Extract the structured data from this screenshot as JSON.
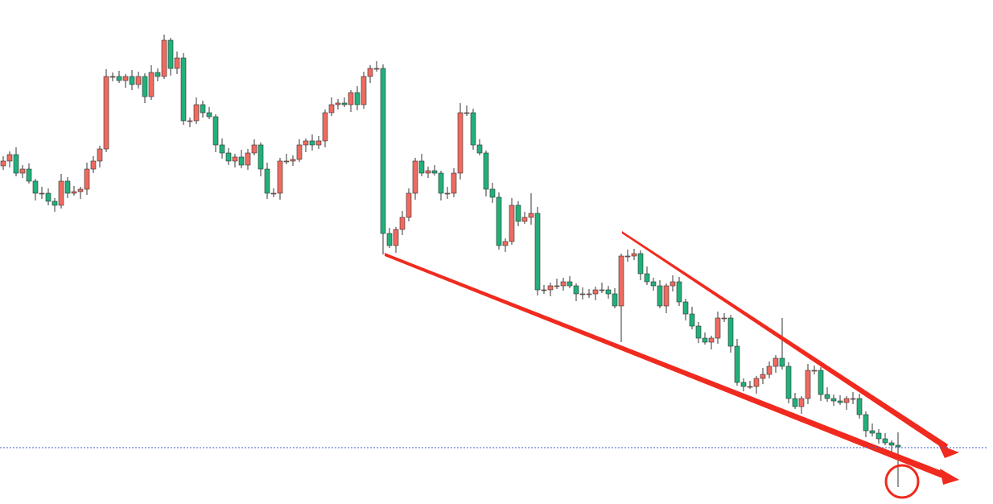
{
  "chart_data": {
    "type": "candlestick",
    "up_color": "#ef6a5f",
    "down_color": "#22b07a",
    "wick_color": "#333333",
    "ylim": [
      0,
      626
    ],
    "hline": {
      "value": 70,
      "color": "#3a5fcd"
    },
    "open": [
      420,
      426,
      434,
      411,
      416,
      401,
      386,
      386,
      376,
      371,
      401,
      386,
      388,
      391,
      416,
      426,
      441,
      531,
      531,
      526,
      531,
      521,
      531,
      506,
      536,
      531,
      576,
      541,
      554,
      476,
      476,
      496,
      486,
      481,
      446,
      436,
      426,
      431,
      421,
      436,
      446,
      416,
      386,
      386,
      426,
      426,
      428,
      446,
      451,
      446,
      451,
      486,
      496,
      498,
      496,
      511,
      496,
      531,
      541,
      541,
      336,
      321,
      341,
      356,
      386,
      426,
      411,
      414,
      411,
      386,
      386,
      411,
      486,
      486,
      446,
      436,
      391,
      381,
      321,
      326,
      371,
      351,
      356,
      361,
      266,
      266,
      271,
      271,
      276,
      271,
      261,
      261,
      261,
      266,
      266,
      261,
      246,
      308,
      308,
      311,
      286,
      276,
      271,
      246,
      271,
      276,
      251,
      236,
      221,
      206,
      201,
      206,
      231,
      231,
      196,
      151,
      146,
      146,
      156,
      161,
      171,
      181,
      171,
      131,
      121,
      131,
      166,
      166,
      136,
      131,
      128,
      126,
      131,
      131,
      111,
      91,
      88,
      81,
      76,
      73
    ],
    "high": [
      432,
      438,
      443,
      421,
      423,
      404,
      394,
      392,
      380,
      410,
      406,
      395,
      394,
      424,
      432,
      445,
      540,
      536,
      538,
      534,
      539,
      537,
      535,
      545,
      541,
      583,
      579,
      562,
      560,
      480,
      505,
      501,
      493,
      484,
      454,
      442,
      435,
      440,
      441,
      453,
      449,
      424,
      392,
      430,
      435,
      433,
      453,
      454,
      459,
      457,
      490,
      505,
      503,
      505,
      514,
      519,
      537,
      545,
      550,
      546,
      343,
      344,
      364,
      392,
      430,
      435,
      419,
      421,
      414,
      394,
      417,
      498,
      495,
      491,
      453,
      439,
      399,
      387,
      330,
      380,
      376,
      363,
      386,
      369,
      272,
      275,
      280,
      281,
      283,
      274,
      269,
      267,
      270,
      275,
      271,
      268,
      311,
      316,
      317,
      315,
      295,
      281,
      278,
      274,
      284,
      282,
      255,
      245,
      226,
      213,
      209,
      239,
      237,
      235,
      205,
      156,
      153,
      159,
      169,
      177,
      185,
      231,
      176,
      138,
      134,
      174,
      172,
      170,
      145,
      136,
      135,
      134,
      139,
      137,
      115,
      100,
      93,
      88,
      79,
      89
    ],
    "low": [
      415,
      418,
      407,
      405,
      398,
      377,
      379,
      371,
      363,
      367,
      380,
      383,
      379,
      384,
      411,
      418,
      437,
      525,
      523,
      517,
      514,
      516,
      498,
      502,
      525,
      528,
      532,
      534,
      471,
      468,
      472,
      480,
      478,
      437,
      429,
      421,
      418,
      417,
      415,
      433,
      407,
      379,
      381,
      378,
      422,
      420,
      425,
      437,
      439,
      441,
      443,
      482,
      490,
      493,
      487,
      489,
      491,
      523,
      537,
      310,
      318,
      312,
      334,
      351,
      378,
      407,
      405,
      408,
      377,
      379,
      381,
      403,
      482,
      440,
      433,
      382,
      374,
      316,
      313,
      322,
      345,
      348,
      347,
      259,
      261,
      258,
      267,
      265,
      268,
      252,
      254,
      256,
      253,
      262,
      255,
      243,
      201,
      301,
      303,
      278,
      272,
      265,
      243,
      237,
      264,
      246,
      228,
      217,
      200,
      198,
      192,
      199,
      226,
      188,
      147,
      140,
      143,
      137,
      149,
      156,
      163,
      167,
      125,
      118,
      112,
      124,
      161,
      128,
      127,
      122,
      123,
      117,
      124,
      106,
      83,
      84,
      75,
      73,
      64,
      21
    ],
    "close": [
      426,
      434,
      411,
      416,
      401,
      386,
      386,
      376,
      371,
      401,
      386,
      388,
      391,
      416,
      426,
      441,
      531,
      531,
      526,
      531,
      521,
      531,
      506,
      536,
      531,
      576,
      541,
      554,
      476,
      476,
      496,
      486,
      481,
      446,
      436,
      426,
      431,
      421,
      436,
      446,
      416,
      386,
      386,
      426,
      426,
      428,
      446,
      451,
      446,
      451,
      486,
      496,
      498,
      496,
      511,
      496,
      531,
      541,
      541,
      336,
      321,
      341,
      356,
      386,
      426,
      411,
      414,
      411,
      386,
      386,
      411,
      486,
      486,
      446,
      436,
      391,
      381,
      321,
      326,
      371,
      351,
      356,
      361,
      266,
      266,
      271,
      271,
      276,
      271,
      261,
      261,
      261,
      266,
      266,
      261,
      246,
      308,
      308,
      311,
      286,
      276,
      271,
      246,
      271,
      276,
      251,
      236,
      221,
      206,
      201,
      206,
      231,
      231,
      196,
      151,
      146,
      146,
      156,
      161,
      171,
      181,
      171,
      131,
      121,
      131,
      166,
      166,
      136,
      131,
      128,
      126,
      131,
      131,
      111,
      91,
      88,
      81,
      76,
      73,
      71
    ]
  }
}
